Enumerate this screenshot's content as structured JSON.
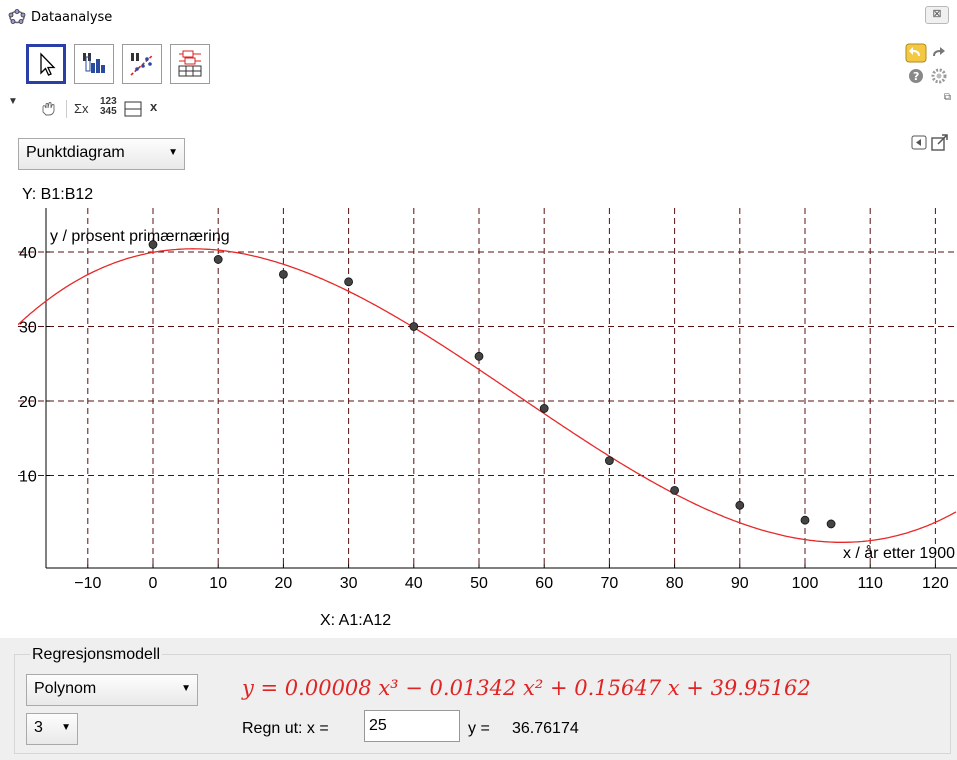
{
  "window": {
    "title": "Dataanalyse",
    "close_label": "⊠"
  },
  "toolbar": {
    "tools": [
      "move-tool",
      "one-variable-stats-tool",
      "two-variable-regression-tool",
      "multi-variable-stats-tool"
    ]
  },
  "stylebar": {
    "sigma_label": "Σx",
    "numbers_label": "123\n345",
    "x_label": "x"
  },
  "plot_type": {
    "selected": "Punktdiagram"
  },
  "y_source": "Y:  B1:B12",
  "x_source": "X:  A1:A12",
  "chart_data": {
    "type": "scatter",
    "xlabel": "x / år etter 1900",
    "ylabel": "y / prosent primærnæring",
    "xlim": [
      -20,
      123
    ],
    "ylim": [
      0,
      48
    ],
    "x_ticks": [
      -10,
      0,
      10,
      20,
      30,
      40,
      50,
      60,
      70,
      80,
      90,
      100,
      110,
      120
    ],
    "y_ticks": [
      10,
      20,
      30,
      40
    ],
    "x_tick_labels": [
      "−10",
      "0",
      "10",
      "20",
      "30",
      "40",
      "50",
      "60",
      "70",
      "80",
      "90",
      "100",
      "110",
      "120"
    ],
    "y_tick_labels": [
      "10",
      "20",
      "30",
      "40"
    ],
    "grid": true,
    "points": [
      {
        "x": 0,
        "y": 41
      },
      {
        "x": 10,
        "y": 39
      },
      {
        "x": 20,
        "y": 37
      },
      {
        "x": 30,
        "y": 36
      },
      {
        "x": 40,
        "y": 30
      },
      {
        "x": 50,
        "y": 26
      },
      {
        "x": 60,
        "y": 19
      },
      {
        "x": 70,
        "y": 12
      },
      {
        "x": 80,
        "y": 8
      },
      {
        "x": 90,
        "y": 6
      },
      {
        "x": 100,
        "y": 4
      },
      {
        "x": 104,
        "y": 3.5
      }
    ],
    "curve": {
      "type": "polynomial",
      "coefficients": [
        8e-05,
        -0.01342,
        0.15647,
        39.95162
      ],
      "color": "#e62a2a"
    },
    "point_color": "#444444"
  },
  "regression": {
    "title": "Regresjonsmodell",
    "model_selected": "Polynom",
    "degree_selected": "3",
    "equation": "y = 0.00008 x³ − 0.01342 x² + 0.15647 x + 39.95162",
    "calc_label": "Regn ut:  x =",
    "calc_x": "25",
    "y_label": "y =",
    "calc_y": "36.76174"
  }
}
